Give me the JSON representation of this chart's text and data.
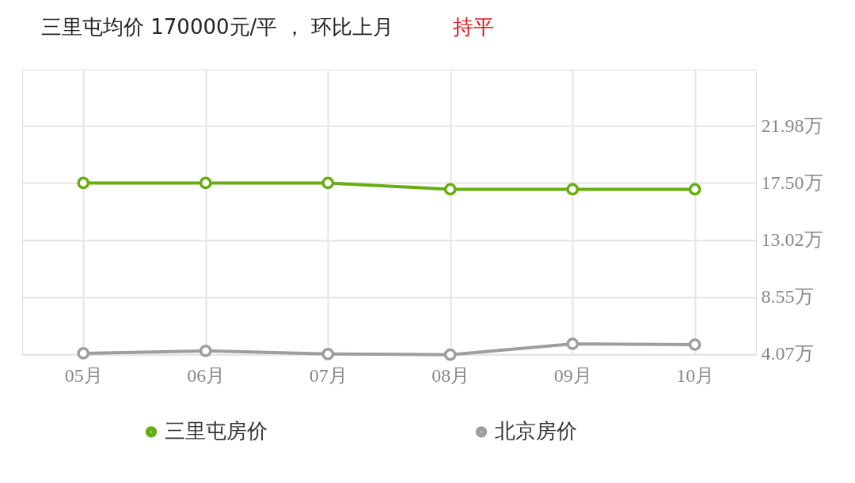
{
  "chart_data": {
    "type": "line",
    "title": "三里屯均价 170000元/平 ， 环比上月",
    "annotations": [
      "持平"
    ],
    "categories": [
      "05月",
      "06月",
      "07月",
      "08月",
      "09月",
      "10月"
    ],
    "series": [
      {
        "name": "三里屯房价",
        "color": "#66ad11",
        "values": [
          17.5,
          17.5,
          17.5,
          17.0,
          17.0,
          17.0
        ]
      },
      {
        "name": "北京房价",
        "color": "#9e9e9e",
        "values": [
          4.13,
          4.32,
          4.07,
          4.02,
          4.87,
          4.81
        ]
      }
    ],
    "ylim": [
      4.0,
      26.4
    ],
    "yticks": [
      {
        "value": 4.07,
        "label": "4.07万"
      },
      {
        "value": 8.55,
        "label": "8.55万"
      },
      {
        "value": 13.02,
        "label": "13.02万"
      },
      {
        "value": 17.5,
        "label": "17.50万"
      },
      {
        "value": 21.98,
        "label": "21.98万"
      }
    ],
    "grid": true,
    "legend": "bottom",
    "marker": "circle",
    "line_style": "solid"
  }
}
